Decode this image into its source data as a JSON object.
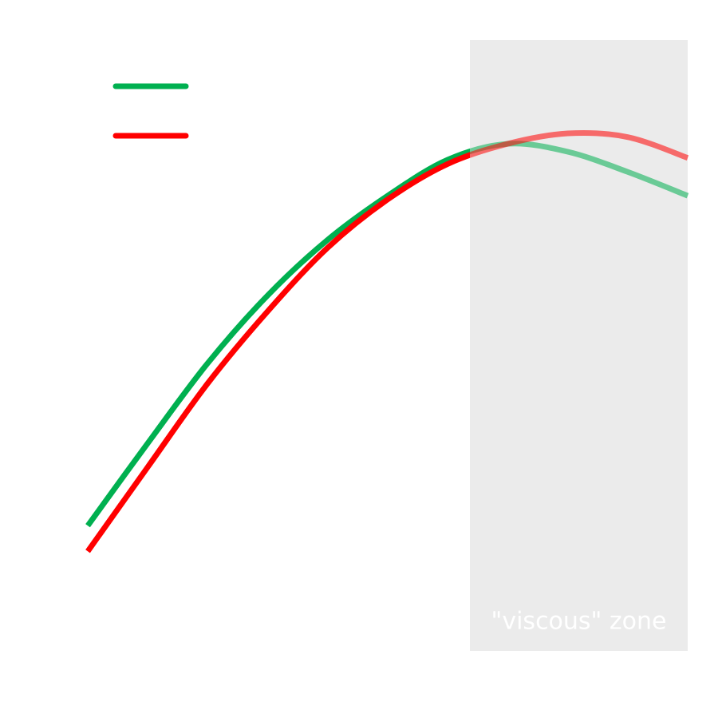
{
  "chart_data": {
    "type": "line",
    "x": [
      0,
      10,
      20,
      30,
      40,
      50,
      60,
      70,
      80,
      90,
      100
    ],
    "xlim": [
      0,
      100
    ],
    "ylim": [
      0,
      100
    ],
    "series": [
      {
        "color": "#00b050",
        "values": [
          20.5,
          34.0,
          47.1,
          58.2,
          67.3,
          74.5,
          80.4,
          83.0,
          81.7,
          78.4,
          74.5
        ]
      },
      {
        "color": "#ff0000",
        "values": [
          16.3,
          30.1,
          43.8,
          55.6,
          66.0,
          73.9,
          79.7,
          83.0,
          84.7,
          84.1,
          80.7
        ]
      }
    ],
    "zone": {
      "label": "\"viscous\" zone",
      "xlim": [
        63.7,
        100
      ],
      "color": "#ebebeb"
    }
  }
}
